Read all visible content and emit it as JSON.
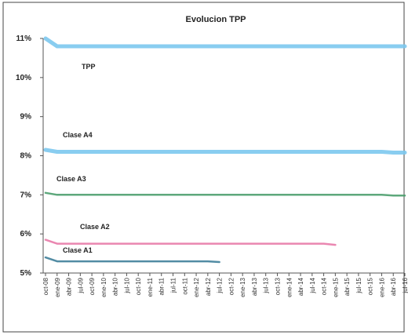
{
  "chart_data": {
    "type": "line",
    "title": "Evolucion TPP",
    "xlabel": "",
    "ylabel": "",
    "y_tick_labels": [
      "5%",
      "6%",
      "7%",
      "8%",
      "9%",
      "10%",
      "11%"
    ],
    "ylim": [
      5,
      11
    ],
    "grid": false,
    "legend": "none",
    "categories": [
      "oct-08",
      "ene-09",
      "abr-09",
      "jul-09",
      "oct-09",
      "ene-10",
      "abr-10",
      "jul-10",
      "oct-10",
      "ene-11",
      "abr-11",
      "jul-11",
      "oct-11",
      "ene-12",
      "abr-12",
      "jul-12",
      "oct-12",
      "ene-13",
      "abr-13",
      "jul-13",
      "oct-13",
      "ene-14",
      "abr-14",
      "jul-14",
      "oct-14",
      "ene-15",
      "abr-15",
      "jul-15",
      "oct-15",
      "ene-16",
      "abr-16",
      "jul-16"
    ],
    "series": [
      {
        "name": "TPP",
        "color": "#7cc8ee",
        "values": [
          11.0,
          10.8,
          10.8,
          10.8,
          10.8,
          10.8,
          10.8,
          10.8,
          10.8,
          10.8,
          10.8,
          10.8,
          10.8,
          10.8,
          10.8,
          10.8,
          10.8,
          10.8,
          10.8,
          10.8,
          10.8,
          10.8,
          10.8,
          10.8,
          10.8,
          10.8,
          10.8,
          10.8,
          10.8,
          10.8,
          10.8,
          10.8
        ]
      },
      {
        "name": "Clase A4",
        "color": "#7cc8ee",
        "values": [
          8.15,
          8.1,
          8.1,
          8.1,
          8.1,
          8.1,
          8.1,
          8.1,
          8.1,
          8.1,
          8.1,
          8.1,
          8.1,
          8.1,
          8.1,
          8.1,
          8.1,
          8.1,
          8.1,
          8.1,
          8.1,
          8.1,
          8.1,
          8.1,
          8.1,
          8.1,
          8.1,
          8.1,
          8.1,
          8.1,
          8.08,
          8.08
        ]
      },
      {
        "name": "Clase A3",
        "color": "#4c9e6e",
        "values": [
          7.05,
          7.0,
          7.0,
          7.0,
          7.0,
          7.0,
          7.0,
          7.0,
          7.0,
          7.0,
          7.0,
          7.0,
          7.0,
          7.0,
          7.0,
          7.0,
          7.0,
          7.0,
          7.0,
          7.0,
          7.0,
          7.0,
          7.0,
          7.0,
          7.0,
          7.0,
          7.0,
          7.0,
          7.0,
          7.0,
          6.98,
          6.98
        ]
      },
      {
        "name": "Clase A2",
        "color": "#e87aa8",
        "values": [
          5.85,
          5.75,
          5.75,
          5.75,
          5.75,
          5.75,
          5.75,
          5.75,
          5.75,
          5.75,
          5.75,
          5.75,
          5.75,
          5.75,
          5.75,
          5.75,
          5.75,
          5.75,
          5.75,
          5.75,
          5.75,
          5.75,
          5.75,
          5.75,
          5.75,
          5.72,
          null,
          null,
          null,
          null,
          null,
          null
        ]
      },
      {
        "name": "Clase A1",
        "color": "#3f7f9a",
        "values": [
          5.4,
          5.3,
          5.3,
          5.3,
          5.3,
          5.3,
          5.3,
          5.3,
          5.3,
          5.3,
          5.3,
          5.3,
          5.3,
          5.3,
          5.3,
          5.28,
          null,
          null,
          null,
          null,
          null,
          null,
          null,
          null,
          null,
          null,
          null,
          null,
          null,
          null,
          null,
          null
        ]
      }
    ]
  }
}
